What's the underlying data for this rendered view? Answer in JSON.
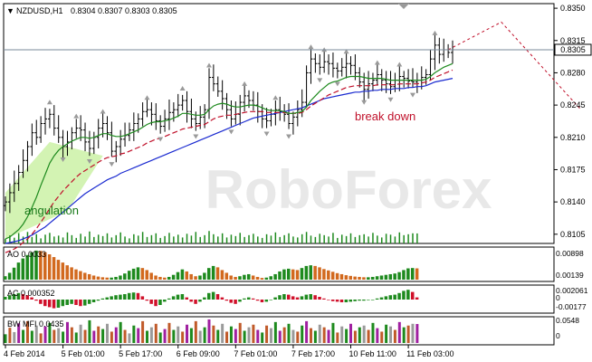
{
  "chart_data": {
    "type": "candlestick",
    "symbol_header": "NZDUSD,H1",
    "ohlc_header": "0.8304 0.8307 0.8303 0.8305",
    "current_price_label": "0.8305",
    "watermark": "RoboForex",
    "annotations": {
      "angulation": "angulation",
      "break_down": "break down"
    },
    "x_ticks": [
      "4 Feb 2014",
      "5 Feb 01:00",
      "5 Feb 17:00",
      "6 Feb 09:00",
      "7 Feb 01:00",
      "7 Feb 17:00",
      "10 Feb 11:00",
      "11 Feb 03:00"
    ],
    "price_panel": {
      "y_ticks": [
        "0.8350",
        "0.8315",
        "0.8280",
        "0.8245",
        "0.8210",
        "0.8175",
        "0.8140",
        "0.8105"
      ],
      "ylim": [
        0.8095,
        0.8355
      ],
      "current_price": 0.8305,
      "closes": [
        0.814,
        0.815,
        0.816,
        0.8172,
        0.8185,
        0.82,
        0.8215,
        0.821,
        0.8225,
        0.823,
        0.8235,
        0.822,
        0.821,
        0.82,
        0.8205,
        0.8215,
        0.822,
        0.8218,
        0.8205,
        0.8198,
        0.821,
        0.822,
        0.8225,
        0.8215,
        0.8195,
        0.82,
        0.8208,
        0.8212,
        0.8218,
        0.8225,
        0.823,
        0.8238,
        0.824,
        0.8235,
        0.8228,
        0.8222,
        0.823,
        0.8237,
        0.824,
        0.8245,
        0.825,
        0.8238,
        0.823,
        0.8225,
        0.8232,
        0.824,
        0.8275,
        0.8268,
        0.826,
        0.8252,
        0.824,
        0.823,
        0.8235,
        0.8248,
        0.8255,
        0.825,
        0.8245,
        0.8238,
        0.823,
        0.8228,
        0.8235,
        0.824,
        0.8238,
        0.8235,
        0.8225,
        0.8232,
        0.824,
        0.8248,
        0.828,
        0.8295,
        0.829,
        0.8286,
        0.8292,
        0.829,
        0.8285,
        0.8282,
        0.8286,
        0.829,
        0.8288,
        0.828,
        0.827,
        0.8262,
        0.8268,
        0.8272,
        0.8278,
        0.8272,
        0.8268,
        0.8265,
        0.8272,
        0.8276,
        0.8274,
        0.8271,
        0.827,
        0.8272,
        0.8275,
        0.8278,
        0.8295,
        0.831,
        0.83,
        0.8305,
        0.8302,
        0.8305
      ],
      "ma_fast": [
        0.81,
        0.8102,
        0.8106,
        0.811,
        0.8116,
        0.8124,
        0.8134,
        0.8145,
        0.8158,
        0.817,
        0.8182,
        0.819,
        0.8196,
        0.82,
        0.8203,
        0.8206,
        0.8208,
        0.821,
        0.821,
        0.8209,
        0.821,
        0.8212,
        0.8214,
        0.8214,
        0.8212,
        0.8211,
        0.8211,
        0.8212,
        0.8214,
        0.8216,
        0.8218,
        0.8221,
        0.8224,
        0.8226,
        0.8227,
        0.8227,
        0.8228,
        0.8229,
        0.8231,
        0.8233,
        0.8236,
        0.8236,
        0.8235,
        0.8234,
        0.8234,
        0.8235,
        0.824,
        0.8244,
        0.8246,
        0.8247,
        0.8246,
        0.8244,
        0.8243,
        0.8243,
        0.8244,
        0.8245,
        0.8245,
        0.8244,
        0.8242,
        0.824,
        0.8239,
        0.8239,
        0.8239,
        0.8238,
        0.8236,
        0.8236,
        0.8237,
        0.8238,
        0.8243,
        0.825,
        0.8255,
        0.826,
        0.8264,
        0.8268,
        0.827,
        0.8271,
        0.8273,
        0.8275,
        0.8276,
        0.8276,
        0.8276,
        0.8275,
        0.8274,
        0.8274,
        0.8274,
        0.8274,
        0.8273,
        0.8272,
        0.8272,
        0.8272,
        0.8272,
        0.8272,
        0.8272,
        0.8272,
        0.8272,
        0.8273,
        0.8276,
        0.828,
        0.8283,
        0.8286,
        0.8288,
        0.829
      ],
      "ma_mid": [
        0.8085,
        0.8087,
        0.8089,
        0.8092,
        0.8096,
        0.81,
        0.8105,
        0.8111,
        0.8118,
        0.8125,
        0.8133,
        0.814,
        0.8146,
        0.8152,
        0.8157,
        0.8162,
        0.8167,
        0.8171,
        0.8174,
        0.8177,
        0.818,
        0.8183,
        0.8186,
        0.8188,
        0.8189,
        0.819,
        0.8192,
        0.8193,
        0.8195,
        0.8197,
        0.8199,
        0.8201,
        0.8204,
        0.8206,
        0.8208,
        0.8209,
        0.8211,
        0.8213,
        0.8215,
        0.8217,
        0.8219,
        0.822,
        0.8221,
        0.8222,
        0.8223,
        0.8224,
        0.8227,
        0.823,
        0.8232,
        0.8233,
        0.8234,
        0.8234,
        0.8235,
        0.8236,
        0.8237,
        0.8238,
        0.8238,
        0.8238,
        0.8238,
        0.8237,
        0.8237,
        0.8237,
        0.8237,
        0.8237,
        0.8236,
        0.8236,
        0.8236,
        0.8237,
        0.824,
        0.8244,
        0.8247,
        0.825,
        0.8253,
        0.8256,
        0.8258,
        0.826,
        0.8262,
        0.8264,
        0.8265,
        0.8266,
        0.8266,
        0.8266,
        0.8266,
        0.8266,
        0.8267,
        0.8267,
        0.8267,
        0.8267,
        0.8267,
        0.8268,
        0.8268,
        0.8268,
        0.8268,
        0.8268,
        0.8269,
        0.827,
        0.8272,
        0.8275,
        0.8277,
        0.8279,
        0.8281,
        0.8283
      ],
      "ma_slow": [
        0.8095,
        0.8096,
        0.8097,
        0.8098,
        0.81,
        0.8102,
        0.8104,
        0.8107,
        0.811,
        0.8113,
        0.8117,
        0.8121,
        0.8125,
        0.8129,
        0.8133,
        0.8137,
        0.8141,
        0.8145,
        0.8149,
        0.8152,
        0.8155,
        0.8158,
        0.8161,
        0.8164,
        0.8166,
        0.8168,
        0.8171,
        0.8173,
        0.8175,
        0.8177,
        0.8179,
        0.8181,
        0.8183,
        0.8185,
        0.8187,
        0.8189,
        0.8191,
        0.8193,
        0.8195,
        0.8197,
        0.8199,
        0.8201,
        0.8203,
        0.8205,
        0.8207,
        0.8209,
        0.8211,
        0.8213,
        0.8215,
        0.8217,
        0.8219,
        0.8221,
        0.8223,
        0.8225,
        0.8227,
        0.8229,
        0.8231,
        0.8232,
        0.8233,
        0.8234,
        0.8235,
        0.8236,
        0.8237,
        0.8238,
        0.8239,
        0.824,
        0.8241,
        0.8242,
        0.8244,
        0.8246,
        0.8248,
        0.825,
        0.8252,
        0.8253,
        0.8254,
        0.8255,
        0.8256,
        0.8257,
        0.8258,
        0.8259,
        0.8259,
        0.826,
        0.826,
        0.8261,
        0.8261,
        0.8262,
        0.8262,
        0.8262,
        0.8263,
        0.8263,
        0.8263,
        0.8264,
        0.8264,
        0.8265,
        0.8265,
        0.8266,
        0.8268,
        0.827,
        0.8271,
        0.8272,
        0.8273,
        0.8274
      ],
      "forecast_path": [
        [
          100,
          0.8305
        ],
        [
          112,
          0.8335
        ],
        [
          130,
          0.824
        ]
      ]
    },
    "ao_panel": {
      "label": "AO 0.0033",
      "y_ticks": [
        "0.00898",
        "0.00139"
      ],
      "values": [
        0.001,
        0.002,
        0.0035,
        0.005,
        0.0062,
        0.0072,
        0.008,
        0.0085,
        0.0084,
        0.008,
        0.0074,
        0.0066,
        0.0058,
        0.005,
        0.0042,
        0.0036,
        0.003,
        0.0025,
        0.002,
        0.0016,
        0.0012,
        0.0009,
        0.0007,
        0.0006,
        0.0006,
        0.0008,
        0.0012,
        0.0018,
        0.0026,
        0.0032,
        0.0036,
        0.0034,
        0.0028,
        0.002,
        0.0012,
        0.0008,
        0.0006,
        0.0008,
        0.0014,
        0.0022,
        0.003,
        0.0024,
        0.0016,
        0.001,
        0.0012,
        0.002,
        0.0034,
        0.004,
        0.0036,
        0.0028,
        0.002,
        0.0012,
        0.0008,
        0.001,
        0.0014,
        0.0016,
        0.0012,
        0.0008,
        0.0005,
        0.0006,
        0.001,
        0.0016,
        0.0024,
        0.003,
        0.0032,
        0.003,
        0.0028,
        0.0034,
        0.004,
        0.0042,
        0.004,
        0.0036,
        0.0031,
        0.0027,
        0.0023,
        0.0019,
        0.0016,
        0.0013,
        0.0011,
        0.0009,
        0.0008,
        0.0007,
        0.0007,
        0.0008,
        0.001,
        0.0012,
        0.0014,
        0.0016,
        0.0018,
        0.0022,
        0.0028,
        0.0033,
        0.0034,
        0.0033
      ]
    },
    "ac_panel": {
      "label": "AC 0.000352",
      "y_ticks": [
        "0.002061",
        "0",
        "-0.00177"
      ],
      "values": [
        0.0005,
        0.0008,
        0.001,
        0.0012,
        0.001,
        0.0008,
        0.0004,
        -0.0002,
        -0.0008,
        -0.0012,
        -0.0014,
        -0.0016,
        -0.0015,
        -0.0012,
        -0.001,
        -0.0008,
        -0.001,
        -0.0012,
        -0.0011,
        -0.0008,
        -0.0005,
        -0.0002,
        0.0002,
        0.0004,
        0.0006,
        0.0008,
        0.0009,
        0.001,
        0.0012,
        0.0013,
        0.0012,
        0.0006,
        -0.0002,
        -0.0008,
        -0.0012,
        -0.001,
        -0.0004,
        0.0002,
        0.0006,
        0.0009,
        0.001,
        0.0004,
        -0.0004,
        -0.0008,
        -0.0004,
        0.0004,
        0.0012,
        0.0014,
        0.001,
        0.0004,
        -0.0002,
        -0.0006,
        -0.0008,
        -0.0004,
        0.0002,
        0.0004,
        0.0002,
        -0.0002,
        -0.0005,
        -0.0004,
        0.0,
        0.0004,
        0.0008,
        0.001,
        0.0009,
        0.0006,
        0.0004,
        0.0006,
        0.0009,
        0.001,
        0.0008,
        0.0005,
        0.0002,
        -0.0001,
        -0.0003,
        -0.0004,
        -0.0005,
        -0.0005,
        -0.0004,
        -0.0003,
        -0.0002,
        -0.0002,
        -0.0001,
        0.0,
        0.0002,
        0.0004,
        0.0006,
        0.0008,
        0.0009,
        0.0012,
        0.0016,
        0.0018,
        0.0014,
        0.0004
      ]
    },
    "bwmfi_panel": {
      "label": "BW MFI 0.0435",
      "y_ticks": [
        "0.0548",
        "0"
      ],
      "values": [
        0.02,
        0.035,
        0.025,
        0.045,
        0.03,
        0.05,
        0.028,
        0.04,
        0.022,
        0.038,
        0.046,
        0.03,
        0.034,
        0.026,
        0.048,
        0.036,
        0.024,
        0.042,
        0.03,
        0.052,
        0.028,
        0.038,
        0.032,
        0.044,
        0.026,
        0.036,
        0.048,
        0.03,
        0.022,
        0.04,
        0.034,
        0.05,
        0.028,
        0.036,
        0.044,
        0.024,
        0.032,
        0.046,
        0.03,
        0.038,
        0.026,
        0.042,
        0.034,
        0.05,
        0.028,
        0.036,
        0.054,
        0.04,
        0.03,
        0.044,
        0.026,
        0.038,
        0.032,
        0.046,
        0.028,
        0.036,
        0.042,
        0.03,
        0.024,
        0.04,
        0.034,
        0.048,
        0.028,
        0.036,
        0.044,
        0.03,
        0.026,
        0.04,
        0.05,
        0.034,
        0.028,
        0.042,
        0.036,
        0.03,
        0.046,
        0.024,
        0.038,
        0.032,
        0.044,
        0.028,
        0.036,
        0.04,
        0.03,
        0.046,
        0.034,
        0.026,
        0.042,
        0.038,
        0.03,
        0.048,
        0.036,
        0.04,
        0.044,
        0.0435
      ],
      "colors": [
        "#1e8a1e",
        "#c05a2a",
        "#9a9a9a",
        "#a020a0",
        "#1e8a1e",
        "#c05a2a",
        "#1e8a1e",
        "#9a9a9a",
        "#c05a2a",
        "#a020a0",
        "#1e8a1e",
        "#c05a2a",
        "#9a9a9a",
        "#1e8a1e",
        "#a020a0",
        "#c05a2a",
        "#1e8a1e",
        "#9a9a9a",
        "#c05a2a",
        "#1e8a1e",
        "#a020a0",
        "#c05a2a",
        "#1e8a1e",
        "#9a9a9a",
        "#c05a2a",
        "#a020a0",
        "#1e8a1e",
        "#c05a2a",
        "#9a9a9a",
        "#1e8a1e",
        "#a020a0",
        "#c05a2a",
        "#1e8a1e",
        "#9a9a9a",
        "#c05a2a",
        "#1e8a1e",
        "#a020a0",
        "#c05a2a",
        "#1e8a1e",
        "#9a9a9a",
        "#c05a2a",
        "#a020a0",
        "#1e8a1e",
        "#c05a2a",
        "#9a9a9a",
        "#1e8a1e",
        "#a020a0",
        "#c05a2a",
        "#1e8a1e",
        "#9a9a9a",
        "#c05a2a",
        "#1e8a1e",
        "#a020a0",
        "#c05a2a",
        "#1e8a1e",
        "#9a9a9a",
        "#c05a2a",
        "#a020a0",
        "#1e8a1e",
        "#c05a2a",
        "#9a9a9a",
        "#1e8a1e",
        "#a020a0",
        "#c05a2a",
        "#1e8a1e",
        "#9a9a9a",
        "#c05a2a",
        "#1e8a1e",
        "#a020a0",
        "#c05a2a",
        "#1e8a1e",
        "#9a9a9a",
        "#c05a2a",
        "#a020a0",
        "#1e8a1e",
        "#c05a2a",
        "#9a9a9a",
        "#1e8a1e",
        "#a020a0",
        "#c05a2a",
        "#1e8a1e",
        "#9a9a9a",
        "#c05a2a",
        "#1e8a1e",
        "#a020a0",
        "#c05a2a",
        "#1e8a1e",
        "#9a9a9a",
        "#c05a2a",
        "#a020a0",
        "#1e8a1e",
        "#c05a2a",
        "#9a9a9a",
        "#a020a0"
      ]
    },
    "colors": {
      "candle": "#000000",
      "ma_fast": "#1e8a1e",
      "ma_mid": "#c0102a",
      "ma_slow": "#1a2ad0",
      "forecast": "#c0102a",
      "ao_up": "#1e8a1e",
      "ao_down": "#d2691e",
      "ac_up": "#1e8a1e",
      "ac_down": "#d0102a",
      "volume": "#1e8a1e",
      "angulation_fill": "#c8f0a0",
      "fractal": "#9a9a9a",
      "current_price_line": "#7a8a9a",
      "break_down_text": "#c0102a",
      "angulation_text": "#1a7a1a"
    }
  }
}
